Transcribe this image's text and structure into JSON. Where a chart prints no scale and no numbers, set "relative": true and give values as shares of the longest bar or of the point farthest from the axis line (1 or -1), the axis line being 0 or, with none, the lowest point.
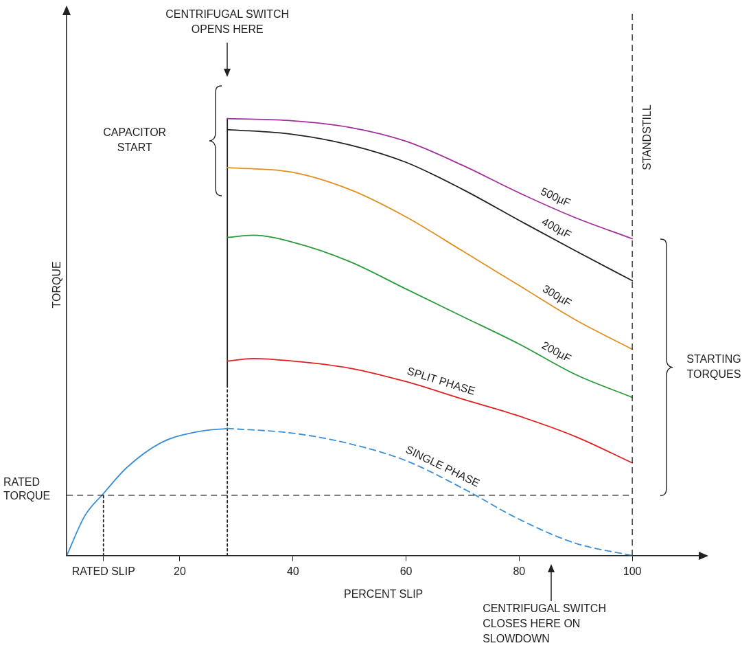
{
  "chart_data": {
    "type": "line",
    "relative": true,
    "xlabel": "PERCENT SLIP",
    "ylabel": "TORQUE",
    "xlim": [
      0,
      112
    ],
    "xticks": [
      {
        "value": 6.5,
        "label": "RATED SLIP"
      },
      20,
      40,
      60,
      80,
      100
    ],
    "marker": "none",
    "series": [
      {
        "name": "500µF",
        "color": "#a0309a",
        "x": [
          28.4,
          40,
          50,
          60,
          70,
          80,
          89.6,
          100
        ],
        "values": [
          1.0,
          0.995,
          0.98,
          0.948,
          0.893,
          0.83,
          0.775,
          0.725
        ]
      },
      {
        "name": "400µF",
        "color": "#222222",
        "x": [
          28.4,
          40,
          50,
          60,
          70,
          80,
          90,
          100
        ],
        "values": [
          0.975,
          0.964,
          0.94,
          0.9,
          0.838,
          0.767,
          0.697,
          0.629
        ]
      },
      {
        "name": "300µF",
        "color": "#e09020",
        "x": [
          28.4,
          40,
          50,
          60,
          70,
          80,
          90,
          100
        ],
        "values": [
          0.888,
          0.877,
          0.838,
          0.775,
          0.697,
          0.618,
          0.539,
          0.472
        ]
      },
      {
        "name": "200µF",
        "color": "#2a9a3a",
        "x": [
          28.4,
          33,
          40,
          50,
          60,
          70,
          80,
          90,
          100
        ],
        "values": [
          0.728,
          0.733,
          0.717,
          0.673,
          0.61,
          0.547,
          0.484,
          0.414,
          0.362
        ]
      },
      {
        "name": "SPLIT PHASE",
        "color": "#e02020",
        "x": [
          28.4,
          33,
          40,
          50,
          60,
          70,
          80,
          90,
          100
        ],
        "values": [
          0.445,
          0.451,
          0.445,
          0.429,
          0.398,
          0.358,
          0.319,
          0.272,
          0.212
        ]
      },
      {
        "name": "SINGLE PHASE",
        "color": "#3a8fd8",
        "line_style": "dashed",
        "x": [
          28.4,
          40,
          50,
          60,
          70,
          80,
          90,
          100
        ],
        "values": [
          0.291,
          0.28,
          0.256,
          0.217,
          0.154,
          0.083,
          0.028,
          0
        ]
      },
      {
        "color": "#3a8fd8",
        "x": [
          0,
          3.2,
          6.5,
          10.6,
          16.8,
          23,
          28.4
        ],
        "values": [
          0,
          0.091,
          0.142,
          0.201,
          0.259,
          0.283,
          0.291
        ]
      },
      {
        "color": "#222222",
        "line_style": "dotted",
        "x": [
          6.5,
          6.5
        ],
        "values": [
          0,
          0.138
        ]
      },
      {
        "color": "#222222",
        "line_style": "dotted",
        "x": [
          28.4,
          28.4
        ],
        "values": [
          0,
          0.39
        ]
      },
      {
        "color": "#222222",
        "x": [
          28.4,
          28.4
        ],
        "values": [
          0.39,
          1.0
        ]
      }
    ],
    "ref_lines": [
      {
        "axis": "y",
        "value": 0.138,
        "label": "RATED TORQUE",
        "line_style": "dashed"
      },
      {
        "axis": "x",
        "value": 100,
        "label": "STANDSTILL",
        "line_style": "dashed"
      }
    ],
    "annotations": [
      "CENTRIFUGAL SWITCH OPENS HERE",
      "CAPACITOR START",
      "STARTING TORQUES",
      "CENTRIFUGAL SWITCH CLOSES HERE ON SLOWDOWN"
    ]
  }
}
